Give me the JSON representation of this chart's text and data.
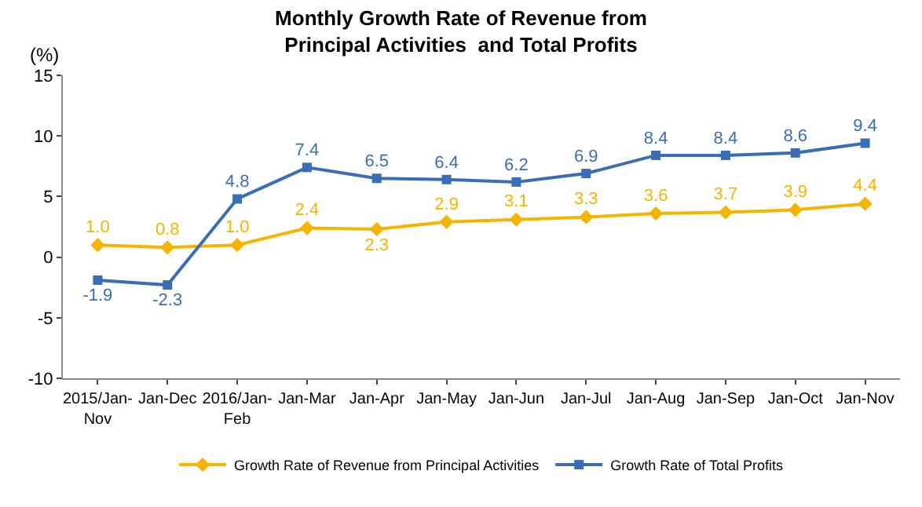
{
  "chart_data": {
    "type": "line",
    "title": "Monthly Growth Rate of Revenue from\nPrincipal Activities  and Total Profits",
    "ylabel": "(%)",
    "categories": [
      "2015/Jan-Nov",
      "Jan-Dec",
      "2016/Jan-Feb",
      "Jan-Mar",
      "Jan-Apr",
      "Jan-May",
      "Jan-Jun",
      "Jan-Jul",
      "Jan-Aug",
      "Jan-Sep",
      "Jan-Oct",
      "Jan-Nov"
    ],
    "series": [
      {
        "name": "Growth Rate of Revenue from Principal Activities",
        "color": "#f5b400",
        "marker": "diamond",
        "values": [
          1.0,
          0.8,
          1.0,
          2.4,
          2.3,
          2.9,
          3.1,
          3.3,
          3.6,
          3.7,
          3.9,
          4.4
        ],
        "value_labels": [
          "1.0",
          "0.8",
          "1.0",
          "2.4",
          "2.3",
          "2.9",
          "3.1",
          "3.3",
          "3.6",
          "3.7",
          "3.9",
          "4.4"
        ]
      },
      {
        "name": "Growth Rate of Total Profits",
        "color": "#3a6db5",
        "marker": "square",
        "values": [
          -1.9,
          -2.3,
          4.8,
          7.4,
          6.5,
          6.4,
          6.2,
          6.9,
          8.4,
          8.4,
          8.6,
          9.4
        ],
        "value_labels": [
          "-1.9",
          "-2.3",
          "4.8",
          "7.4",
          "6.5",
          "6.4",
          "6.2",
          "6.9",
          "8.4",
          "8.4",
          "8.6",
          "9.4"
        ]
      }
    ],
    "ylim": [
      -10,
      15
    ],
    "yticks": [
      -10,
      -5,
      0,
      5,
      10,
      15
    ],
    "legend": "bottom",
    "line_style": "solid"
  }
}
